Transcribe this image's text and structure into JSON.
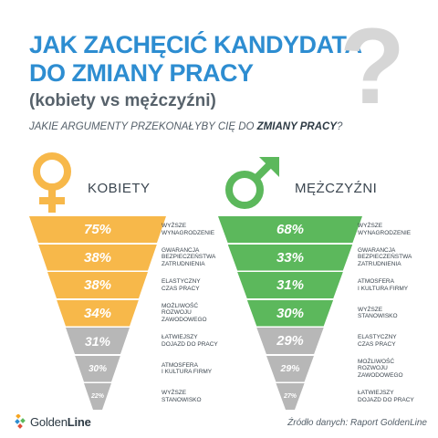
{
  "header": {
    "title_line1": "JAK ZACHĘCIĆ KANDYDATA",
    "title_line2": "DO ZMIANY PRACY",
    "subtitle": "(kobiety vs mężczyźni)",
    "question_mark": "?",
    "question_prefix": "JAKIE ARGUMENTY PRZEKONAŁYBY CIĘ DO ",
    "question_bold": "ZMIANY PRACY",
    "question_suffix": "?"
  },
  "colors": {
    "women_orange": "#f7b84a",
    "men_green": "#5cb85c",
    "gray": "#b7b7b7",
    "title_blue": "#2d8dd1"
  },
  "women": {
    "label": "KOBIETY",
    "icon": "female-symbol-icon",
    "items": [
      {
        "value": "75%",
        "label_lines": [
          "WYŻSZE",
          "WYNAGRODZENIE"
        ],
        "color": "orange"
      },
      {
        "value": "38%",
        "label_lines": [
          "GWARANCJA",
          "BEZPIECZEŃSTWA",
          "ZATRUDNIENIA"
        ],
        "color": "orange"
      },
      {
        "value": "38%",
        "label_lines": [
          "ELASTYCZNY",
          "CZAS PRACY"
        ],
        "color": "orange"
      },
      {
        "value": "34%",
        "label_lines": [
          "MOŻLIWOŚĆ",
          "ROZWOJU",
          "ZAWODOWEGO"
        ],
        "color": "orange"
      },
      {
        "value": "31%",
        "label_lines": [
          "ŁATWIEJSZY",
          "DOJAZD DO PRACY"
        ],
        "color": "gray"
      },
      {
        "value": "30%",
        "label_lines": [
          "ATMOSFERA",
          "I KULTURA FIRMY"
        ],
        "color": "gray"
      },
      {
        "value": "22%",
        "label_lines": [
          "WYŻSZE",
          "STANOWISKO"
        ],
        "color": "gray"
      }
    ]
  },
  "men": {
    "label": "MĘŻCZYŹNI",
    "icon": "male-symbol-icon",
    "items": [
      {
        "value": "68%",
        "label_lines": [
          "WYŻSZE",
          "WYNAGRODZENIE"
        ],
        "color": "green"
      },
      {
        "value": "33%",
        "label_lines": [
          "GWARANCJA",
          "BEZPIECZEŃSTWA",
          "ZATRUDNIENIA"
        ],
        "color": "green"
      },
      {
        "value": "31%",
        "label_lines": [
          "ATMOSFERA",
          "I KULTURA FIRMY"
        ],
        "color": "green"
      },
      {
        "value": "30%",
        "label_lines": [
          "WYŻSZE",
          "STANOWISKO"
        ],
        "color": "green"
      },
      {
        "value": "29%",
        "label_lines": [
          "ELASTYCZNY",
          "CZAS PRACY"
        ],
        "color": "gray"
      },
      {
        "value": "29%",
        "label_lines": [
          "MOŻLIWOŚĆ",
          "ROZWOJU",
          "ZAWODOWEGO"
        ],
        "color": "gray"
      },
      {
        "value": "27%",
        "label_lines": [
          "ŁATWIEJSZY",
          "DOJAZD DO PRACY"
        ],
        "color": "gray"
      }
    ]
  },
  "footer": {
    "logo_icon": "goldenline-logo-icon",
    "logo_golden": "Golden",
    "logo_line": "Line",
    "source": "Źródło danych: Raport GoldenLine"
  }
}
